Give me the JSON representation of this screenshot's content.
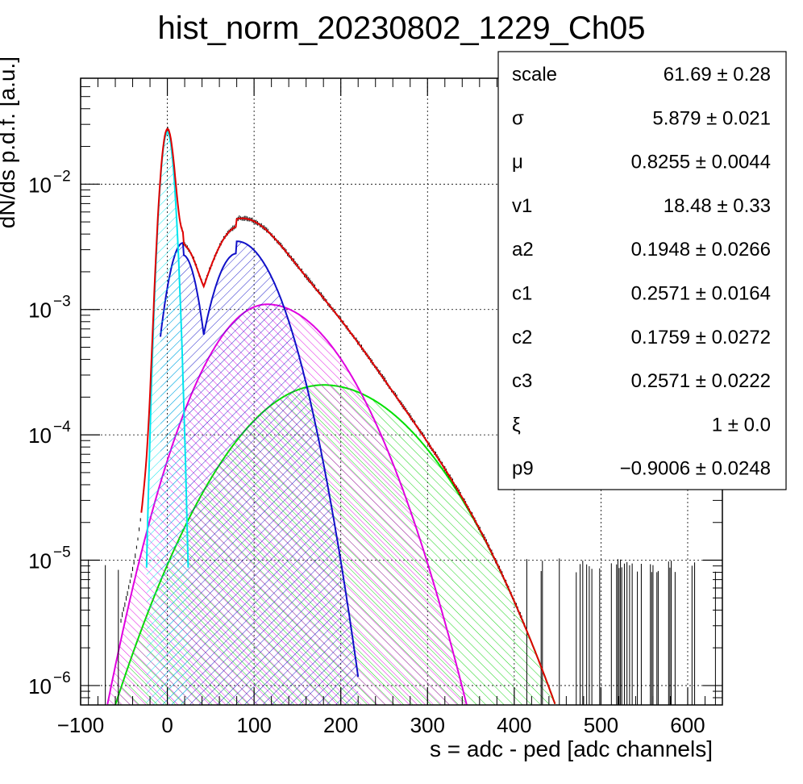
{
  "chart_data": {
    "type": "line",
    "title": "hist_norm_20230802_1229_Ch05",
    "xlabel": "s = adc - ped [adc channels]",
    "ylabel": "dN/ds p.d.f. [a.u.]",
    "y_scale": "log",
    "xlim": [
      -100,
      640
    ],
    "ylim": [
      7e-07,
      0.07
    ],
    "grid": true,
    "x_ticks": [
      {
        "value": -100,
        "label": "−100"
      },
      {
        "value": 0,
        "label": "0"
      },
      {
        "value": 100,
        "label": "100"
      },
      {
        "value": 200,
        "label": "200"
      },
      {
        "value": 300,
        "label": "300"
      },
      {
        "value": 400,
        "label": "400"
      },
      {
        "value": 500,
        "label": "500"
      },
      {
        "value": 600,
        "label": "600"
      }
    ],
    "y_ticks": [
      {
        "value": 1e-06,
        "base": "10",
        "exp": "−6"
      },
      {
        "value": 1e-05,
        "base": "10",
        "exp": "−5"
      },
      {
        "value": 0.0001,
        "base": "10",
        "exp": "−4"
      },
      {
        "value": 0.001,
        "base": "10",
        "exp": "−3"
      },
      {
        "value": 0.01,
        "base": "10",
        "exp": "−2"
      }
    ],
    "components": [
      {
        "color": "#00e5ee",
        "peak_x": 0,
        "peak_y": 0.026,
        "sigma_left": 6,
        "sigma_right": 6
      },
      {
        "color": "#1010c8",
        "peak_x": 80,
        "peak_y": 0.0035,
        "sigma_left": 22,
        "sigma_right": 35,
        "shoulder_x": 18,
        "shoulder_y": 0.0034
      },
      {
        "color": "#e000e0",
        "peak_x": 115,
        "peak_y": 0.0011,
        "sigma_left": 48,
        "sigma_right": 60
      },
      {
        "color": "#00e000",
        "peak_x": 180,
        "peak_y": 0.00025,
        "sigma_left": 70,
        "sigma_right": 78
      },
      {
        "color": "#e00000",
        "type": "total_fit"
      }
    ],
    "histogram_color": "#000000",
    "fit_parameters": [
      {
        "name": "scale",
        "value": "61.69",
        "error": "0.28"
      },
      {
        "name": "σ",
        "value": "5.879",
        "error": "0.021"
      },
      {
        "name": "μ",
        "value": "0.8255",
        "error": "0.0044"
      },
      {
        "name": "v1",
        "value": "18.48",
        "error": "0.33"
      },
      {
        "name": "a2",
        "value": "0.1948",
        "error": "0.0266"
      },
      {
        "name": "c1",
        "value": "0.2571",
        "error": "0.0164"
      },
      {
        "name": "c2",
        "value": "0.1759",
        "error": "0.0272"
      },
      {
        "name": "c3",
        "value": "0.2571",
        "error": "0.0222"
      },
      {
        "name": "ξ",
        "value": "1",
        "error": "0.0"
      },
      {
        "name": "p9",
        "value": "−0.9006",
        "error": "0.0248"
      }
    ],
    "stats_box_position": "top-right"
  }
}
